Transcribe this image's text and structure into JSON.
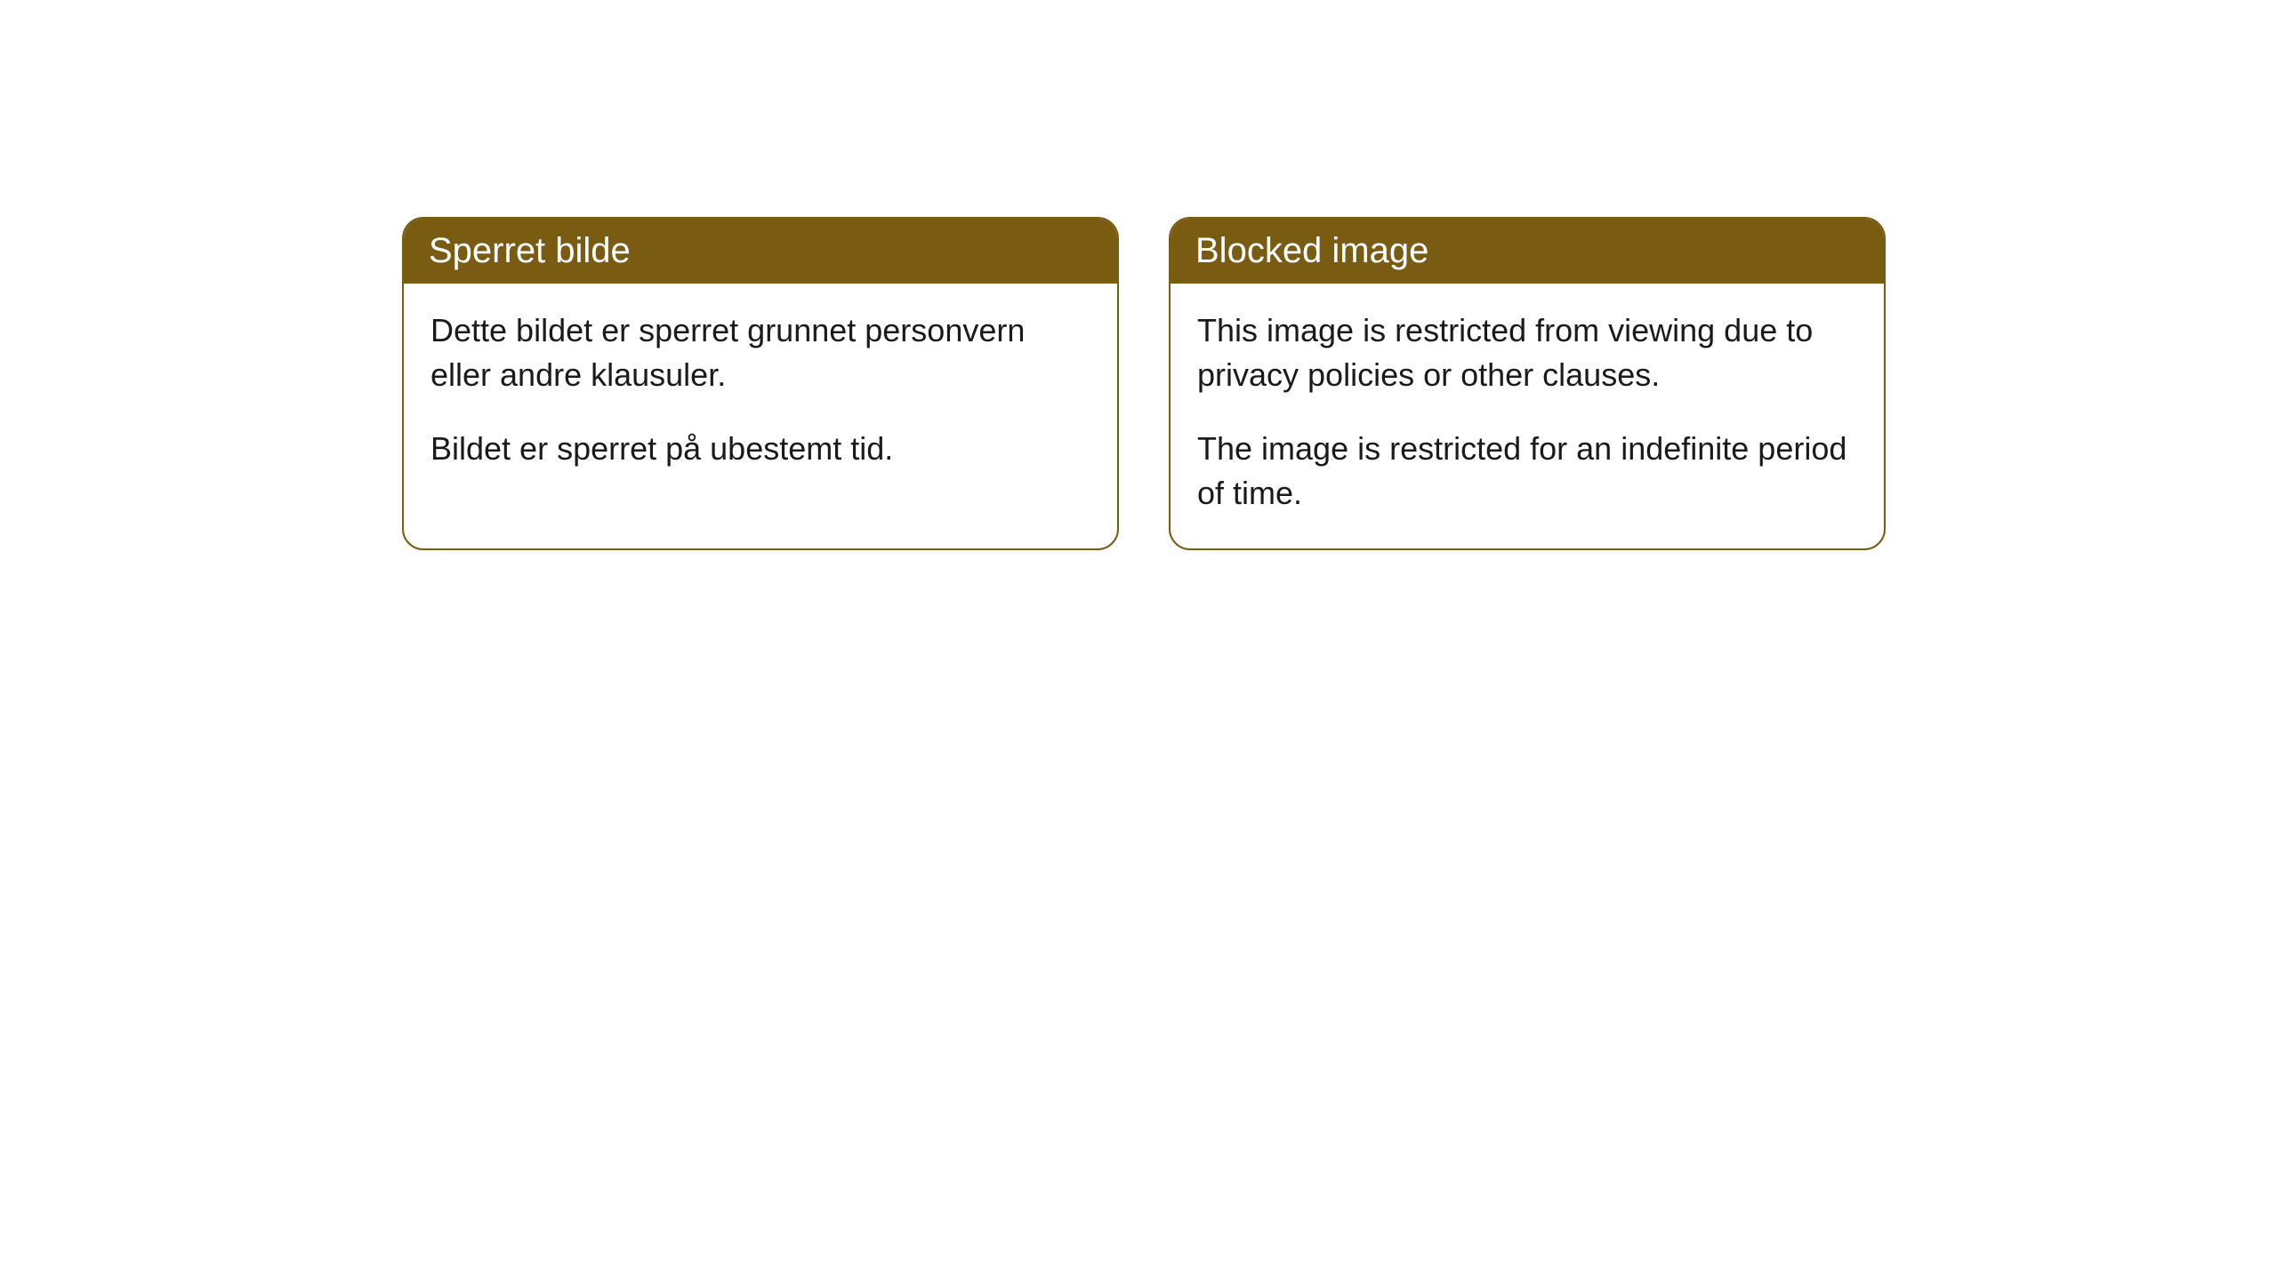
{
  "cards": [
    {
      "title": "Sperret bilde",
      "paragraph1": "Dette bildet er sperret grunnet personvern eller andre klausuler.",
      "paragraph2": "Bildet er sperret på ubestemt tid."
    },
    {
      "title": "Blocked image",
      "paragraph1": "This image is restricted from viewing due to privacy policies or other clauses.",
      "paragraph2": "The image is restricted for an indefinite period of time."
    }
  ],
  "styling": {
    "header_bg_color": "#7a5b12",
    "header_text_color": "#ffffff",
    "border_color": "#7a5b12",
    "body_bg_color": "#ffffff",
    "body_text_color": "#1a1a1a",
    "border_radius": 24,
    "title_fontsize": 40,
    "body_fontsize": 36
  }
}
